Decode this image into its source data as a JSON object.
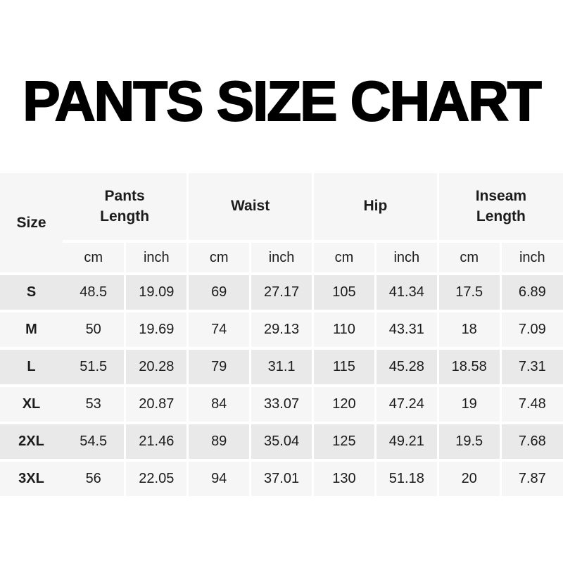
{
  "chart_data": {
    "type": "table",
    "title": "PANTS SIZE CHART",
    "size_label": "Size",
    "groups": [
      "Pants Length",
      "Waist",
      "Hip",
      "Inseam Length"
    ],
    "units": [
      "cm",
      "inch",
      "cm",
      "inch",
      "cm",
      "inch",
      "cm",
      "inch"
    ],
    "rows": [
      {
        "size": "S",
        "values": [
          "48.5",
          "19.09",
          "69",
          "27.17",
          "105",
          "41.34",
          "17.5",
          "6.89"
        ]
      },
      {
        "size": "M",
        "values": [
          "50",
          "19.69",
          "74",
          "29.13",
          "110",
          "43.31",
          "18",
          "7.09"
        ]
      },
      {
        "size": "L",
        "values": [
          "51.5",
          "20.28",
          "79",
          "31.1",
          "115",
          "45.28",
          "18.58",
          "7.31"
        ]
      },
      {
        "size": "XL",
        "values": [
          "53",
          "20.87",
          "84",
          "33.07",
          "120",
          "47.24",
          "19",
          "7.48"
        ]
      },
      {
        "size": "2XL",
        "values": [
          "54.5",
          "21.46",
          "89",
          "35.04",
          "125",
          "49.21",
          "19.5",
          "7.68"
        ]
      },
      {
        "size": "3XL",
        "values": [
          "56",
          "22.05",
          "94",
          "37.01",
          "130",
          "51.18",
          "20",
          "7.87"
        ]
      }
    ]
  },
  "colors": {
    "background": "#ffffff",
    "title_text": "#000000",
    "header_bg": "#f6f6f6",
    "row_odd_bg": "#e9e9e9",
    "row_even_bg": "#f6f6f6",
    "divider": "#ffffff",
    "text": "#1c1c1c"
  }
}
